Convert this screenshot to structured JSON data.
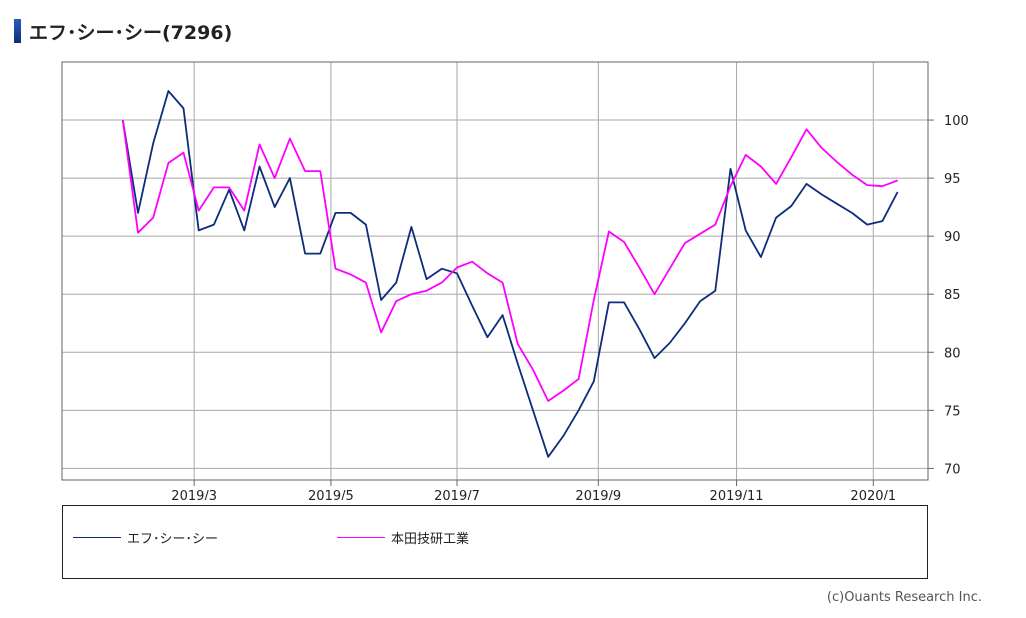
{
  "header": {
    "title": "エフ･シー･シー(7296)"
  },
  "credit": "(c)Ouants Research Inc.",
  "chart_data": {
    "type": "line",
    "ylim": [
      69,
      105
    ],
    "yticks": [
      70,
      75,
      80,
      85,
      90,
      95,
      100
    ],
    "xlim": [
      0,
      57
    ],
    "xticks": [
      {
        "label": "2019/3",
        "x": 8.7
      },
      {
        "label": "2019/5",
        "x": 17.7
      },
      {
        "label": "2019/7",
        "x": 26.0
      },
      {
        "label": "2019/9",
        "x": 35.3
      },
      {
        "label": "2019/11",
        "x": 44.4
      },
      {
        "label": "2020/1",
        "x": 53.4
      }
    ],
    "series": [
      {
        "name": "エフ･シー･シー",
        "color": "#0d2d7a",
        "values": [
          [
            4,
            100
          ],
          [
            5,
            92
          ],
          [
            6,
            98
          ],
          [
            7,
            102.5
          ],
          [
            8,
            101
          ],
          [
            9,
            90.5
          ],
          [
            10,
            91
          ],
          [
            11,
            94
          ],
          [
            12,
            90.5
          ],
          [
            13,
            96
          ],
          [
            14,
            92.5
          ],
          [
            15,
            95
          ],
          [
            16,
            88.5
          ],
          [
            17,
            88.5
          ],
          [
            18,
            92
          ],
          [
            19,
            92
          ],
          [
            20,
            91
          ],
          [
            21,
            84.5
          ],
          [
            22,
            86
          ],
          [
            23,
            90.8
          ],
          [
            24,
            86.3
          ],
          [
            25,
            87.2
          ],
          [
            26,
            86.8
          ],
          [
            27,
            84
          ],
          [
            28,
            81.3
          ],
          [
            29,
            83.2
          ],
          [
            30,
            79
          ],
          [
            31,
            75
          ],
          [
            32,
            71
          ],
          [
            33,
            72.8
          ],
          [
            34,
            75
          ],
          [
            35,
            77.5
          ],
          [
            36,
            84.3
          ],
          [
            37,
            84.3
          ],
          [
            38,
            82
          ],
          [
            39,
            79.5
          ],
          [
            40,
            80.8
          ],
          [
            41,
            82.5
          ],
          [
            42,
            84.4
          ],
          [
            43,
            85.3
          ],
          [
            44,
            95.8
          ],
          [
            45,
            90.5
          ],
          [
            46,
            88.2
          ],
          [
            47,
            91.6
          ],
          [
            48,
            92.6
          ],
          [
            49,
            94.5
          ],
          [
            50,
            93.6
          ],
          [
            51,
            92.8
          ],
          [
            52,
            92
          ],
          [
            53,
            91
          ],
          [
            54,
            91.3
          ],
          [
            55,
            93.8
          ]
        ]
      },
      {
        "name": "本田技研工業",
        "color": "#ff00ff",
        "values": [
          [
            4,
            100
          ],
          [
            5,
            90.3
          ],
          [
            6,
            91.6
          ],
          [
            7,
            96.3
          ],
          [
            8,
            97.2
          ],
          [
            9,
            92.2
          ],
          [
            10,
            94.2
          ],
          [
            11,
            94.2
          ],
          [
            12,
            92.2
          ],
          [
            13,
            97.9
          ],
          [
            14,
            95
          ],
          [
            15,
            98.4
          ],
          [
            16,
            95.6
          ],
          [
            17,
            95.6
          ],
          [
            18,
            87.2
          ],
          [
            19,
            86.7
          ],
          [
            20,
            86
          ],
          [
            21,
            81.7
          ],
          [
            22,
            84.4
          ],
          [
            23,
            85
          ],
          [
            24,
            85.3
          ],
          [
            25,
            86
          ],
          [
            26,
            87.3
          ],
          [
            27,
            87.8
          ],
          [
            28,
            86.8
          ],
          [
            29,
            86
          ],
          [
            30,
            80.7
          ],
          [
            31,
            78.5
          ],
          [
            32,
            75.8
          ],
          [
            33,
            76.7
          ],
          [
            34,
            77.7
          ],
          [
            35,
            84.5
          ],
          [
            36,
            90.4
          ],
          [
            37,
            89.5
          ],
          [
            38,
            87.3
          ],
          [
            39,
            85
          ],
          [
            40,
            87.2
          ],
          [
            41,
            89.4
          ],
          [
            42,
            90.2
          ],
          [
            43,
            91
          ],
          [
            44,
            94.3
          ],
          [
            45,
            97
          ],
          [
            46,
            96
          ],
          [
            47,
            94.5
          ],
          [
            48,
            96.8
          ],
          [
            49,
            99.2
          ],
          [
            50,
            97.6
          ],
          [
            51,
            96.4
          ],
          [
            52,
            95.3
          ],
          [
            53,
            94.4
          ],
          [
            54,
            94.3
          ],
          [
            55,
            94.8
          ]
        ]
      }
    ],
    "legend_position": "bottom"
  }
}
